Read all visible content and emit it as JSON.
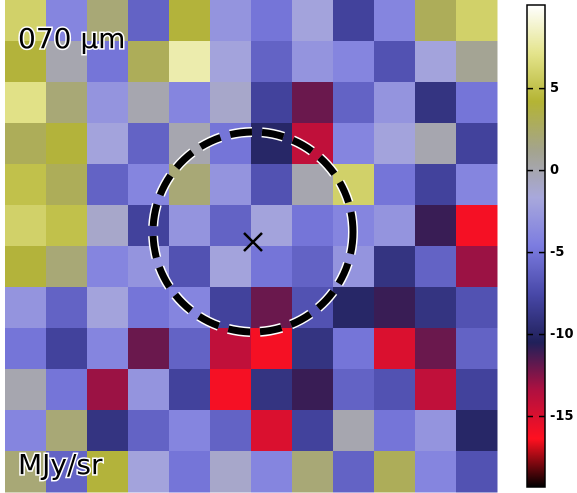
{
  "chart_data": {
    "type": "heatmap",
    "title": "070 μm",
    "colorbar_label": "MJy/sr",
    "clim": [
      -19.3,
      10.1
    ],
    "cticks": [
      5,
      0,
      -5,
      -10,
      -15
    ],
    "colormap": [
      "#000000",
      "#ff1020",
      "#b01040",
      "#20205a",
      "#4848a8",
      "#7c7ce0",
      "#a8a8dc",
      "#a4a48c",
      "#b4b434",
      "#e4e48c",
      "#ffffff"
    ],
    "z": [
      [
        6,
        -4,
        2,
        -6,
        4,
        -3,
        -5,
        -2,
        -8,
        -4,
        3,
        6
      ],
      [
        4,
        0,
        -5,
        3,
        8,
        -2,
        -6,
        -3,
        -4,
        -7,
        -2,
        1
      ],
      [
        7,
        2,
        -3,
        0,
        -4,
        -1,
        -8,
        -12,
        -6,
        -3,
        -9,
        -5
      ],
      [
        3,
        4,
        -2,
        -6,
        0,
        -5,
        -10,
        -14,
        -4,
        -2,
        0,
        -8
      ],
      [
        5,
        3,
        -6,
        -4,
        2,
        -3,
        -7,
        0,
        6,
        -5,
        -8,
        -4
      ],
      [
        6,
        5,
        -1,
        -8,
        -3,
        -6,
        -2,
        -5,
        -4,
        -3,
        -11,
        -16
      ],
      [
        4,
        2,
        -4,
        -3,
        -7,
        -2,
        -5,
        -6,
        -3,
        -9,
        -6,
        -13
      ],
      [
        -3,
        -6,
        -2,
        -5,
        -4,
        -8,
        -12,
        -7,
        -10,
        -11,
        -9,
        -7
      ],
      [
        -5,
        -8,
        -4,
        -12,
        -6,
        -14,
        -16,
        -9,
        -5,
        -15,
        -12,
        -6
      ],
      [
        0,
        -5,
        -13,
        -3,
        -8,
        -16,
        -9,
        -11,
        -6,
        -7,
        -14,
        -8
      ],
      [
        -4,
        2,
        -9,
        -6,
        -4,
        -6,
        -15,
        -8,
        0,
        -5,
        -3,
        -10
      ],
      [
        2,
        -6,
        4,
        -2,
        -5,
        -1,
        -4,
        2,
        -6,
        3,
        -4,
        -7
      ]
    ]
  }
}
